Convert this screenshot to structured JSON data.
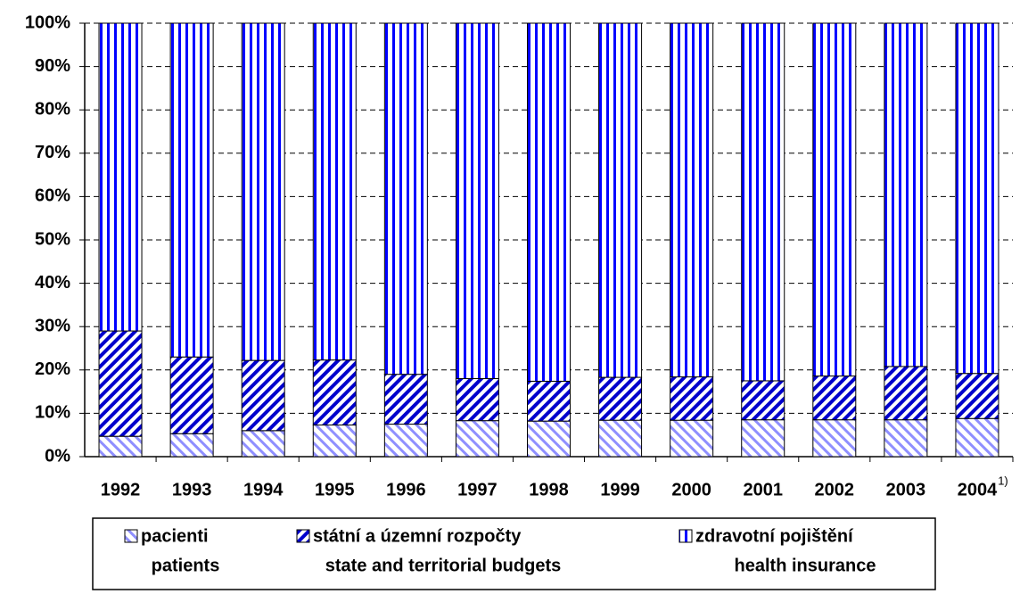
{
  "chart_data": {
    "type": "stacked_bar",
    "categories": [
      "1992",
      "1993",
      "1994",
      "1995",
      "1996",
      "1997",
      "1998",
      "1999",
      "2000",
      "2001",
      "2002",
      "2003",
      "2004"
    ],
    "annotations": [
      {
        "text": "1)"
      }
    ],
    "series": [
      {
        "name": "pacienti",
        "name_en": "patients",
        "color": "#3333ff",
        "pattern": "back-diagonal",
        "values": [
          4.7,
          5.3,
          6.0,
          7.3,
          7.5,
          8.3,
          8.2,
          8.4,
          8.4,
          8.5,
          8.5,
          8.5,
          8.8
        ]
      },
      {
        "name": "státní a územní rozpočty",
        "name_en": "state and territorial budgets",
        "color": "#0000cc",
        "pattern": "diagonal",
        "values": [
          24.3,
          17.7,
          16.2,
          15.0,
          11.5,
          9.7,
          9.2,
          9.9,
          10.0,
          9.0,
          10.1,
          12.3,
          10.4
        ]
      },
      {
        "name": "zdravotní pojištění",
        "name_en": "health insurance",
        "color": "#0000ff",
        "pattern": "vertical",
        "values": [
          71.0,
          77.0,
          77.8,
          77.7,
          81.0,
          82.0,
          82.6,
          81.7,
          81.6,
          82.5,
          81.4,
          79.2,
          80.8
        ]
      }
    ],
    "ylim": [
      0,
      100
    ],
    "yticks": [
      {
        "value": 0,
        "label": "0%"
      },
      {
        "value": 10,
        "label": "10%"
      },
      {
        "value": 20,
        "label": "20%"
      },
      {
        "value": 30,
        "label": "30%"
      },
      {
        "value": 40,
        "label": "40%"
      },
      {
        "value": 50,
        "label": "50%"
      },
      {
        "value": 60,
        "label": "60%"
      },
      {
        "value": 70,
        "label": "70%"
      },
      {
        "value": 80,
        "label": "80%"
      },
      {
        "value": 90,
        "label": "90%"
      },
      {
        "value": 100,
        "label": "100%"
      }
    ],
    "grid": true,
    "legend": "bottom"
  }
}
